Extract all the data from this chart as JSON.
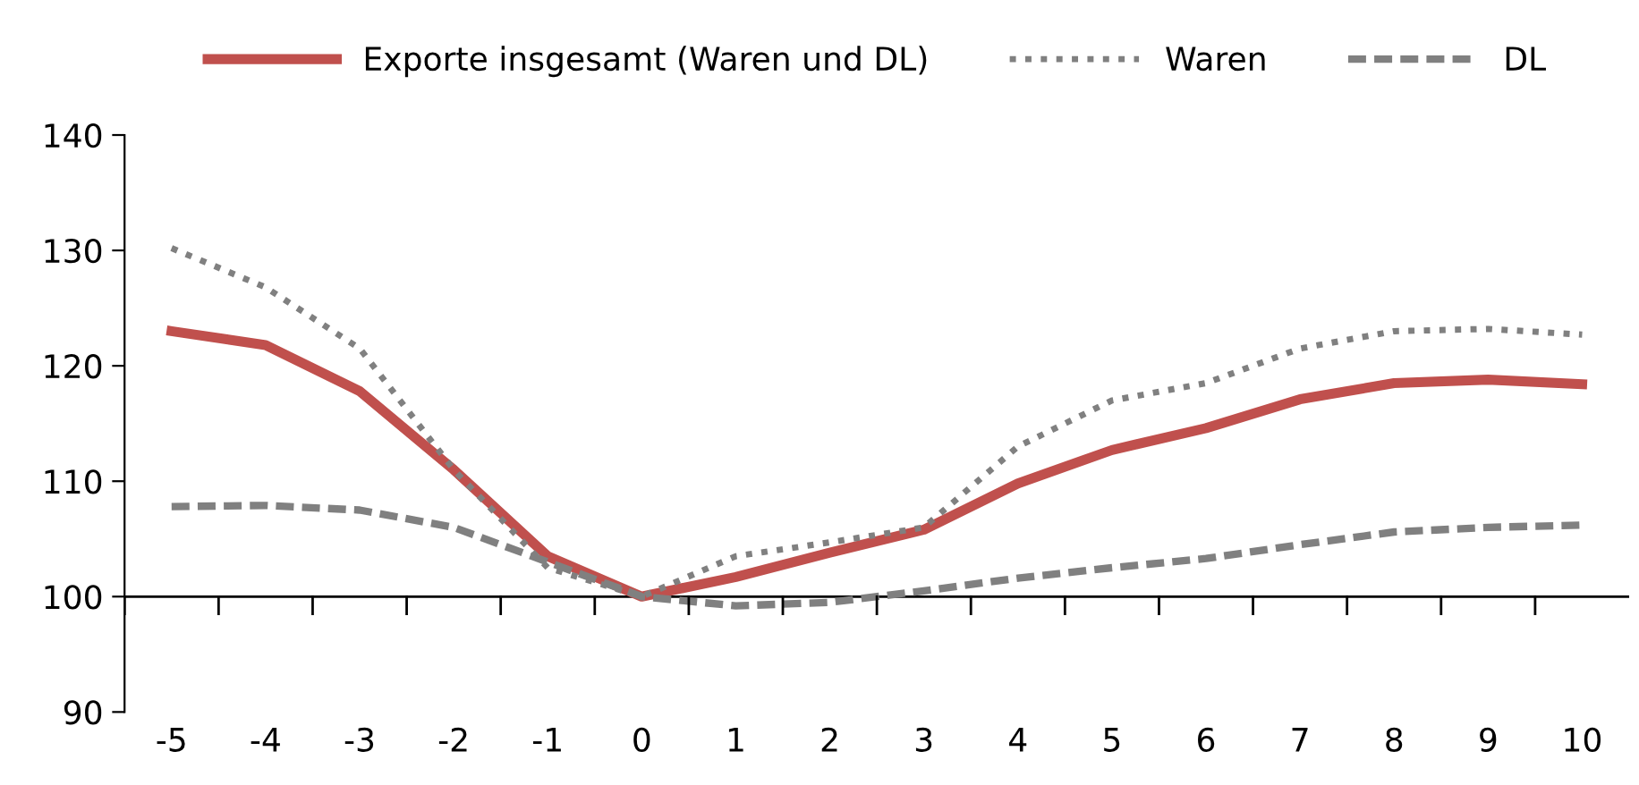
{
  "chart_data": {
    "type": "line",
    "categories": [
      "-5",
      "-4",
      "-3",
      "-2",
      "-1",
      "0",
      "1",
      "2",
      "3",
      "4",
      "5",
      "6",
      "7",
      "8",
      "9",
      "10"
    ],
    "series": [
      {
        "name": "Exporte insgesamt (Waren und DL)",
        "color": "#c0504d",
        "line_style": "solid",
        "values": [
          123,
          121.8,
          117.8,
          111,
          103.5,
          100,
          101.7,
          103.8,
          105.8,
          109.8,
          112.7,
          114.6,
          117.1,
          118.5,
          118.8,
          118.4
        ]
      },
      {
        "name": "Waren",
        "color": "#808080",
        "line_style": "dotted",
        "values": [
          130.2,
          126.8,
          121.5,
          111,
          102.5,
          100,
          103.5,
          104.7,
          106,
          113,
          117,
          118.5,
          121.5,
          123,
          123.2,
          122.7
        ]
      },
      {
        "name": "DL",
        "color": "#808080",
        "line_style": "dashed",
        "values": [
          107.8,
          107.9,
          107.5,
          106,
          103,
          100,
          99.2,
          99.5,
          100.5,
          101.6,
          102.5,
          103.3,
          104.5,
          105.6,
          106,
          106.2
        ]
      }
    ],
    "ylim": [
      90,
      140
    ],
    "yticks": [
      90,
      100,
      110,
      120,
      130,
      140
    ],
    "ref_lines": [
      {
        "axis": "y",
        "value": 100,
        "color": "#000000"
      }
    ],
    "grid": false,
    "legend": "top",
    "marker": "none"
  }
}
